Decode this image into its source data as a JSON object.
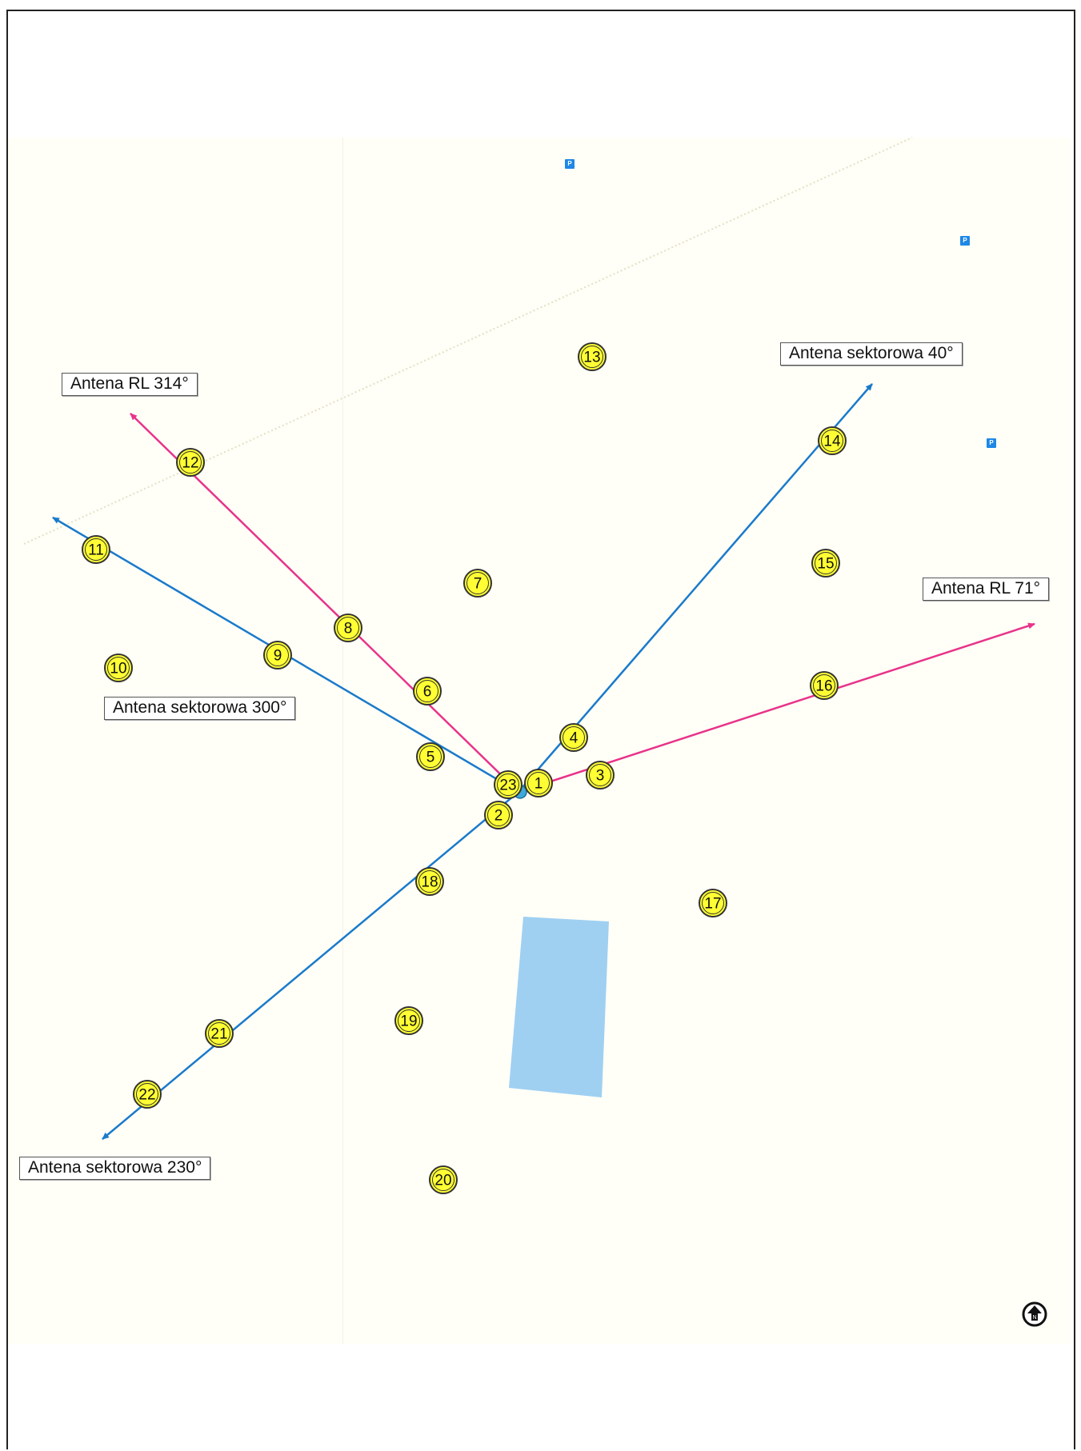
{
  "antenna_labels": [
    {
      "id": "rl-314",
      "text": "Antena RL 314°"
    },
    {
      "id": "sektorowa-40",
      "text": "Antena sektorowa 40°"
    },
    {
      "id": "rl-71",
      "text": "Antena RL 71°"
    },
    {
      "id": "sektorowa-300",
      "text": "Antena sektorowa 300°"
    },
    {
      "id": "sektorowa-230",
      "text": "Antena sektorowa 230°"
    }
  ],
  "measurement_points": [
    "1",
    "2",
    "3",
    "4",
    "5",
    "6",
    "7",
    "8",
    "9",
    "10",
    "11",
    "12",
    "13",
    "14",
    "15",
    "16",
    "17",
    "18",
    "19",
    "20",
    "21",
    "22",
    "23"
  ],
  "parking_icons": [
    "P",
    "P",
    "P"
  ],
  "colors": {
    "sector_beam": "#1a7acb",
    "rl_beam": "#e8338a",
    "point_fill": "#ffff33",
    "point_stroke": "#333333",
    "water": "#9fd0f2",
    "map_bg": "#fffff7"
  },
  "icons": [
    "parking-icon",
    "north-arrow-icon",
    "antenna-site-icon"
  ]
}
